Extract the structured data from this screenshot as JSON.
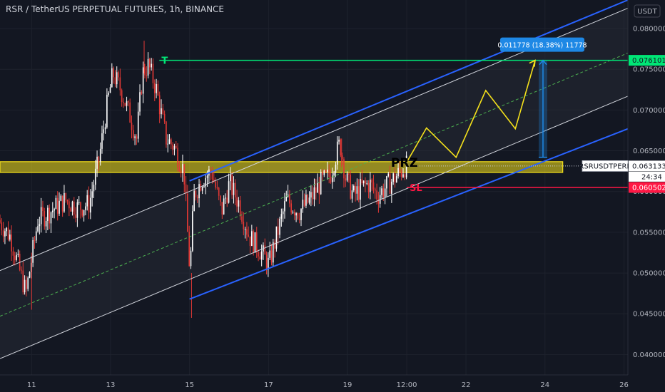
{
  "header": {
    "title": "RSR / TetherUS PERPETUAL FUTURES, 1h, BINANCE",
    "currency": "USDT"
  },
  "colors": {
    "background": "#131722",
    "candle_up": "#ffffff",
    "candle_down": "#e53935",
    "channel_blue": "#2962ff",
    "channel_inner": "#d1d4dc",
    "mid_line": "#4caf50",
    "target": "#00e676",
    "stop": "#ff1744",
    "zone": "#f5e11b",
    "projection": "#f5e11b",
    "measure": "#1e88e5"
  },
  "chart_data": {
    "type": "candlestick",
    "title": "RSR / TetherUS PERPETUAL FUTURES, 1h, BINANCE",
    "symbol": "RSRUSDTPERP",
    "timeframe": "1h",
    "exchange": "BINANCE",
    "ylim": [
      0.0375,
      0.0835
    ],
    "y_ticks": [
      "0.080000",
      "0.075000",
      "0.070000",
      "0.065000",
      "0.060000",
      "0.055000",
      "0.050000",
      "0.045000",
      "0.040000"
    ],
    "y_tick_values": [
      0.08,
      0.075,
      0.07,
      0.065,
      0.06,
      0.055,
      0.05,
      0.045,
      0.04
    ],
    "x_ticks": [
      "11",
      "13",
      "15",
      "17",
      "19",
      "12:00",
      "22",
      "24",
      "26"
    ],
    "x_tick_days": [
      11,
      13,
      15,
      17,
      19,
      20.5,
      22,
      24,
      26
    ],
    "xlim_days": [
      10.2,
      26.1
    ],
    "last_price": "0.063133",
    "countdown": "24:34",
    "price_path_days": [
      10.2,
      10.5,
      10.9,
      11.2,
      11.5,
      11.9,
      12.2,
      12.5,
      12.75,
      12.95,
      13.1,
      13.3,
      13.55,
      13.7,
      13.85,
      14.0,
      14.2,
      14.45,
      14.65,
      14.9,
      15.05,
      15.15,
      15.35,
      15.6,
      15.85,
      16.05,
      16.3,
      16.55,
      16.8,
      17.05,
      17.3,
      17.5,
      17.8,
      18.1,
      18.35,
      18.6,
      18.75,
      18.85,
      19.0,
      19.2,
      19.4,
      19.6,
      19.8,
      20.0,
      20.2,
      20.4,
      20.5
    ],
    "price_path": [
      0.0565,
      0.0545,
      0.0475,
      0.0565,
      0.0575,
      0.059,
      0.058,
      0.0585,
      0.064,
      0.0705,
      0.0745,
      0.0725,
      0.069,
      0.0665,
      0.0745,
      0.0755,
      0.0725,
      0.0665,
      0.0655,
      0.0625,
      0.05,
      0.0595,
      0.0615,
      0.0625,
      0.0575,
      0.061,
      0.0585,
      0.0545,
      0.053,
      0.051,
      0.0555,
      0.059,
      0.0575,
      0.059,
      0.061,
      0.062,
      0.0645,
      0.066,
      0.0615,
      0.0595,
      0.0605,
      0.061,
      0.0595,
      0.0605,
      0.0615,
      0.0625,
      0.0631
    ],
    "channel": {
      "outer_upper": {
        "from_day": 15.0,
        "from_value": 0.0613,
        "to_day": 26.1,
        "to_value": 0.0835
      },
      "outer_lower": {
        "from_day": 15.0,
        "from_value": 0.0468,
        "to_day": 26.1,
        "to_value": 0.0677
      },
      "inner_upper": {
        "from_day": 10.2,
        "from_value": 0.0503,
        "to_day": 26.1,
        "to_value": 0.0825
      },
      "inner_lower": {
        "from_day": 10.2,
        "from_value": 0.0395,
        "to_day": 26.1,
        "to_value": 0.0717
      },
      "median": {
        "from_day": 10.2,
        "from_value": 0.0447,
        "to_day": 26.1,
        "to_value": 0.077
      }
    },
    "zone": {
      "label": "PRZ",
      "from_value": 0.0626,
      "to_value": 0.0634,
      "from_day": 10.2,
      "to_day": 24.45
    },
    "target": {
      "label": "T",
      "value": 0.076101,
      "value_label": "0.076101",
      "from_day": 10.2,
      "to_day": 26.1
    },
    "stop": {
      "label": "SL",
      "value": 0.060502,
      "value_label": "0.060502",
      "from_day": 20.5,
      "to_day": 26.1
    },
    "projection_days": [
      20.5,
      21.0,
      21.75,
      22.5,
      23.25,
      23.75
    ],
    "projection_values": [
      0.0636,
      0.0678,
      0.0642,
      0.0724,
      0.0677,
      0.0761
    ],
    "measure": {
      "day": 23.95,
      "from_value": 0.0642,
      "to_value": 0.0761,
      "label": "0.011778 (18.38%) 11778"
    }
  }
}
